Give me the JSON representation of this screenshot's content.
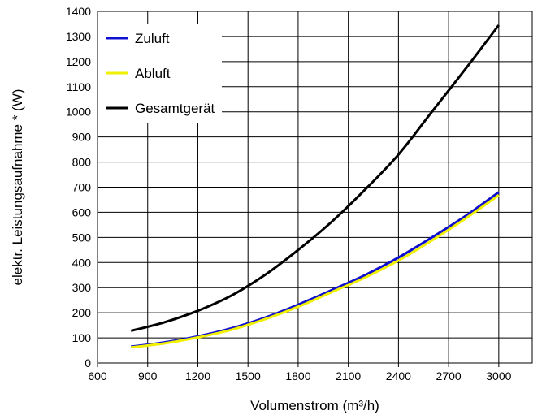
{
  "chart_data": {
    "type": "line",
    "xlabel": "Volumenstrom (m³/h)",
    "ylabel": "elektr. Leistungsaufnahme * (W)",
    "xlim": [
      600,
      3200
    ],
    "ylim": [
      0,
      1400
    ],
    "xticks": [
      600,
      900,
      1200,
      1500,
      1800,
      2100,
      2400,
      2700,
      3000
    ],
    "yticks": [
      0,
      100,
      200,
      300,
      400,
      500,
      600,
      700,
      800,
      900,
      1000,
      1100,
      1200,
      1300,
      1400
    ],
    "grid": true,
    "legend_position": "top-left",
    "x": [
      800,
      1000,
      1200,
      1400,
      1600,
      1800,
      2000,
      2200,
      2400,
      2600,
      2800,
      3000
    ],
    "series": [
      {
        "name": "Zuluft",
        "color": "#1010d0",
        "values": [
          65,
          82,
          106,
          138,
          180,
          232,
          290,
          350,
          420,
          500,
          585,
          680
        ]
      },
      {
        "name": "Abluft",
        "color": "#f0f000",
        "values": [
          62,
          78,
          102,
          132,
          174,
          224,
          282,
          340,
          408,
          488,
          575,
          668
        ]
      },
      {
        "name": "Gesamtgerät",
        "color": "#000000",
        "values": [
          128,
          162,
          208,
          268,
          350,
          450,
          562,
          690,
          830,
          1000,
          1170,
          1345
        ]
      }
    ]
  }
}
